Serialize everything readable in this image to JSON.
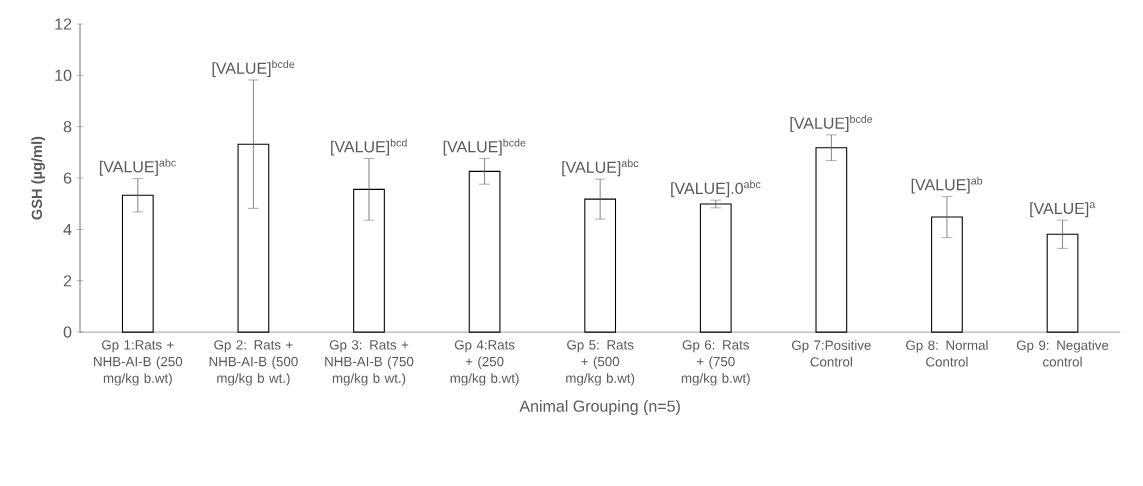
{
  "chart_data": {
    "type": "bar",
    "xlabel": "Animal Grouping (n=5)",
    "ylabel": "GSH (µg/ml)",
    "categories": [
      "Gp 1:Rats + NHB-AI-B (250 mg/kg b.wt)",
      "Gp 2: Rats + NHB-AI-B (500 mg/kg b wt.)",
      "Gp 3: Rats + NHB-AI-B (750 mg/kg b wt.)",
      "Gp 4:Rats + (250 mg/kg b.wt)",
      "Gp 5: Rats + (500 mg/kg b.wt)",
      "Gp 6: Rats + (750 mg/kg b.wt)",
      "Gp 7:Positive Control",
      "Gp 8: Normal Control",
      "Gp 9: Negative control"
    ],
    "values": [
      5.33,
      7.32,
      5.56,
      6.26,
      5.18,
      4.99,
      7.18,
      4.48,
      3.81
    ],
    "errors": [
      0.65,
      2.5,
      1.2,
      0.5,
      0.78,
      0.15,
      0.5,
      0.8,
      0.55
    ],
    "annotations": [
      {
        "text": "[VALUE]$^{abc}$",
        "x": "Gp 1:Rats + NHB-AI-B (250 mg/kg b.wt)",
        "y": 5.98
      },
      {
        "text": "[VALUE]$^{bcde}$",
        "x": "Gp 2: Rats + NHB-AI-B (500 mg/kg b wt.)",
        "y": 9.82
      },
      {
        "text": "[VALUE]$^{bcd}$",
        "x": "Gp 3: Rats + NHB-AI-B (750 mg/kg b wt.)",
        "y": 6.76
      },
      {
        "text": "[VALUE]$^{bcde}$",
        "x": "Gp 4:Rats + (250 mg/kg b.wt)",
        "y": 6.76
      },
      {
        "text": "[VALUE]$^{abc}$",
        "x": "Gp 5: Rats + (500 mg/kg b.wt)",
        "y": 5.96
      },
      {
        "text": "[VALUE].0$^{abc}$",
        "x": "Gp 6: Rats + (750 mg/kg b.wt)",
        "y": 5.14
      },
      {
        "text": "[VALUE]$^{bcde}$",
        "x": "Gp 7:Positive Control",
        "y": 7.68
      },
      {
        "text": "[VALUE]$^{ab}$",
        "x": "Gp 8: Normal Control",
        "y": 5.28
      },
      {
        "text": "[VALUE]$^{a}$",
        "x": "Gp 9: Negative control",
        "y": 4.36
      }
    ],
    "color": "#ffffff",
    "ylim": [
      0,
      12
    ],
    "yticks": [
      0,
      2,
      4,
      6,
      8,
      10,
      12
    ]
  }
}
